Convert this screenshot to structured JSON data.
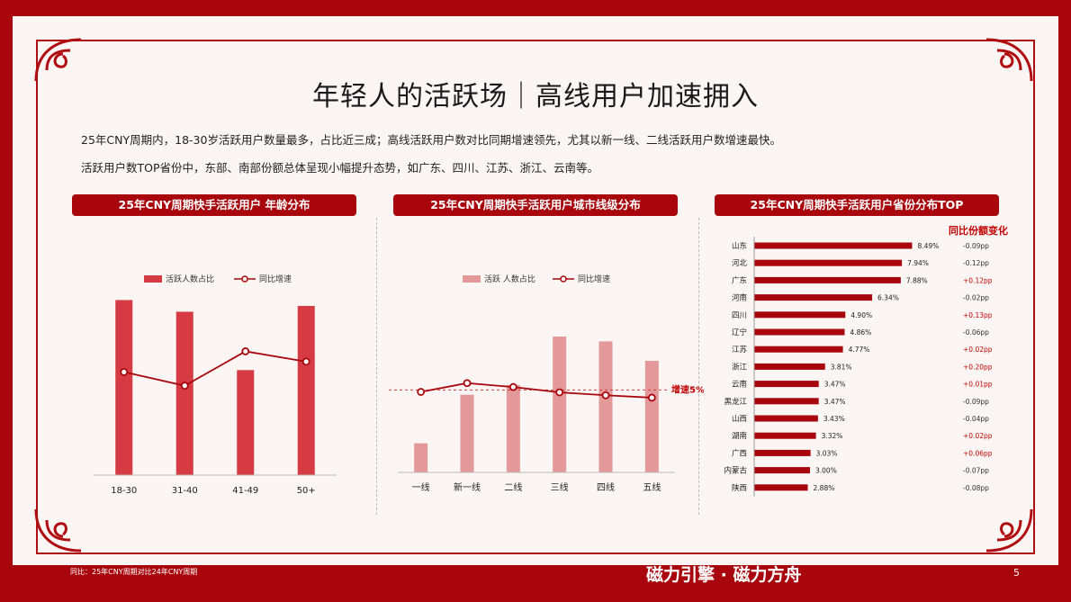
{
  "title": "年轻人的活跃场｜高线用户加速拥入",
  "desc1": "25年CNY周期内，18-30岁活跃用户数量最多，占比近三成；高线活跃用户数对比同期增速领先，尤其以新一线、二线活跃用户数增速最快。",
  "desc2": "活跃用户数TOP省份中，东部、南部份额总体呈现小幅提升态势，如广东、四川、江苏、浙江、云南等。",
  "sections": {
    "age": "25年CNY周期快手活跃用户 年龄分布",
    "city": "25年CNY周期快手活跃用户城市线级分布",
    "province": "25年CNY周期快手活跃用户省份分布TOP"
  },
  "footnote": "同比：25年CNY周期对比24年CNY周期",
  "brand": "磁力引擎 · 磁力方舟",
  "page_number": "5",
  "chart_data": [
    {
      "type": "bar",
      "categories": [
        "18-30",
        "31-40",
        "41-49",
        "50+"
      ],
      "series": [
        {
          "name": "活跃人数占比",
          "kind": "bar",
          "values": [
            0.3,
            0.28,
            0.18,
            0.29
          ]
        },
        {
          "name": "同比增速",
          "kind": "line",
          "values": [
            3.0,
            1.0,
            6.0,
            4.5
          ]
        }
      ],
      "ylim": [
        0,
        0.33
      ],
      "y2lim": [
        -12,
        16
      ],
      "reference_line": null,
      "colors": {
        "bar": "#d63b43",
        "line": "#a8060c"
      }
    },
    {
      "type": "bar",
      "categories": [
        "一线",
        "新一线",
        "二线",
        "三线",
        "四线",
        "五线"
      ],
      "series": [
        {
          "name": "活跃 人数占比",
          "kind": "bar",
          "values": [
            0.06,
            0.16,
            0.18,
            0.28,
            0.27,
            0.23
          ]
        },
        {
          "name": "同比增速",
          "kind": "line",
          "values": [
            4.6,
            6.4,
            5.6,
            4.5,
            3.9,
            3.4
          ]
        }
      ],
      "ylim": [
        0,
        0.28
      ],
      "y2lim": [
        -12,
        16
      ],
      "reference_line": {
        "label": "增速5%",
        "value": 5
      },
      "colors": {
        "bar": "#e3989a",
        "line": "#a8060c"
      }
    },
    {
      "type": "bar",
      "orientation": "horizontal",
      "categories": [
        "山东",
        "河北",
        "广东",
        "河南",
        "四川",
        "辽宁",
        "江苏",
        "浙江",
        "云南",
        "黑龙江",
        "山西",
        "湖南",
        "广西",
        "内蒙古",
        "陕西"
      ],
      "values": [
        8.49,
        7.94,
        7.88,
        6.34,
        4.9,
        4.86,
        4.77,
        3.81,
        3.47,
        3.47,
        3.43,
        3.32,
        3.03,
        3.0,
        2.88
      ],
      "value_labels": [
        "8.49%",
        "7.94%",
        "7.88%",
        "6.34%",
        "4.90%",
        "4.86%",
        "4.77%",
        "3.81%",
        "3.47%",
        "3.47%",
        "3.43%",
        "3.32%",
        "3.03%",
        "3.00%",
        "2.88%"
      ],
      "change_header": "同比份额变化",
      "changes": [
        "-0.09pp",
        "-0.12pp",
        "+0.12pp",
        "-0.02pp",
        "+0.13pp",
        "-0.06pp",
        "+0.02pp",
        "+0.20pp",
        "+0.01pp",
        "-0.09pp",
        "-0.04pp",
        "+0.02pp",
        "+0.06pp",
        "-0.07pp",
        "-0.08pp"
      ],
      "xlim": [
        0,
        9
      ],
      "colors": {
        "bar": "#a8060c",
        "positive": "#c00000",
        "negative": "#333333"
      }
    }
  ]
}
